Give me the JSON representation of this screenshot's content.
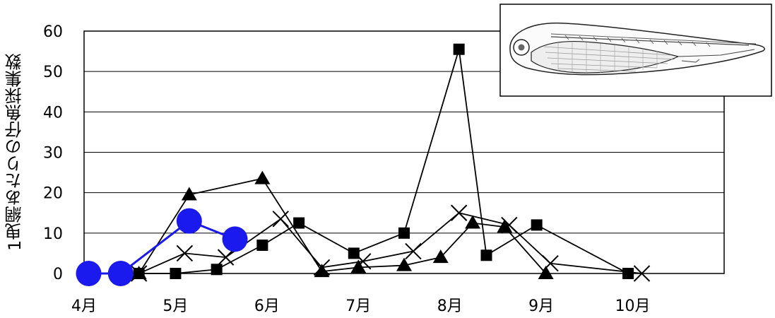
{
  "chart_data": {
    "type": "line",
    "title": "",
    "xlabel": "",
    "ylabel": "1曳網あたりの仔魚採集数",
    "ylim": [
      0,
      60
    ],
    "xlim": [
      4,
      11
    ],
    "y_ticks": [
      0,
      10,
      20,
      30,
      40,
      50,
      60
    ],
    "x_ticks": [
      {
        "value": 4,
        "label": "4月"
      },
      {
        "value": 5,
        "label": "5月"
      },
      {
        "value": 6,
        "label": "6月"
      },
      {
        "value": 7,
        "label": "7月"
      },
      {
        "value": 8,
        "label": "8月"
      },
      {
        "value": 9,
        "label": "9月"
      },
      {
        "value": 10,
        "label": "10月"
      }
    ],
    "grid": "horizontal",
    "legend": "none",
    "inset_image": "fish-larva-illustration",
    "series": [
      {
        "marker": "triangle",
        "color": "#000000",
        "x": [
          4.6,
          5.15,
          5.95,
          6.6,
          7.0,
          7.5,
          7.9,
          8.25,
          8.6,
          9.05
        ],
        "y": [
          0,
          19.5,
          23.5,
          0.5,
          1.5,
          2,
          4,
          12.5,
          11.5,
          0
        ]
      },
      {
        "marker": "square",
        "color": "#000000",
        "x": [
          4.6,
          5.0,
          5.45,
          5.95,
          6.35,
          6.95,
          7.5,
          8.1,
          8.4,
          8.95,
          9.95
        ],
        "y": [
          0,
          0,
          1,
          7,
          12.5,
          5,
          10,
          55.5,
          4.5,
          12,
          0
        ]
      },
      {
        "marker": "x",
        "color": "#000000",
        "x": [
          4.6,
          5.1,
          5.55,
          6.15,
          6.6,
          7.05,
          7.6,
          8.1,
          8.65,
          9.1,
          10.1
        ],
        "y": [
          0,
          5,
          4,
          13.5,
          1.5,
          3,
          5.5,
          15,
          12,
          2.5,
          0
        ]
      },
      {
        "marker": "circle",
        "color": "#1a1aee",
        "x": [
          4.05,
          4.4,
          5.15,
          5.65
        ],
        "y": [
          0,
          0,
          13,
          8.5
        ]
      }
    ]
  }
}
